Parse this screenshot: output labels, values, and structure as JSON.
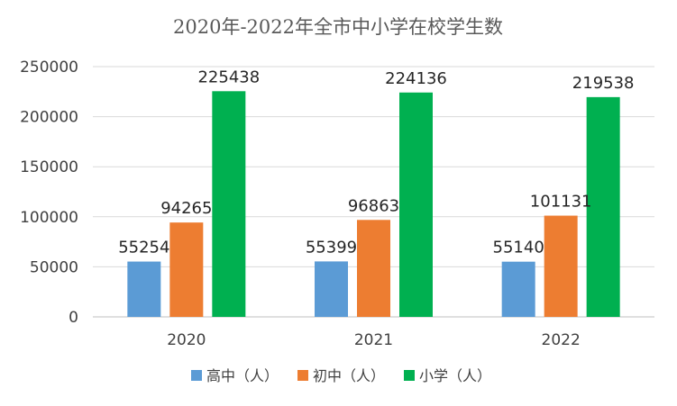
{
  "chart_data": {
    "type": "bar",
    "title": "2020年-2022年全市中小学在校学生数",
    "categories": [
      "2020",
      "2021",
      "2022"
    ],
    "series": [
      {
        "name": "高中（人）",
        "color": "#5b9bd5",
        "values": [
          55254,
          55399,
          55140
        ]
      },
      {
        "name": "初中（人）",
        "color": "#ed7d31",
        "values": [
          94265,
          96863,
          101131
        ]
      },
      {
        "name": "小学（人）",
        "color": "#00b050",
        "values": [
          225438,
          224136,
          219538
        ]
      }
    ],
    "yticks": [
      "0",
      "50000",
      "100000",
      "150000",
      "200000",
      "250000"
    ],
    "ylim": [
      0,
      250000
    ],
    "grid": true,
    "legend": "bottom"
  }
}
